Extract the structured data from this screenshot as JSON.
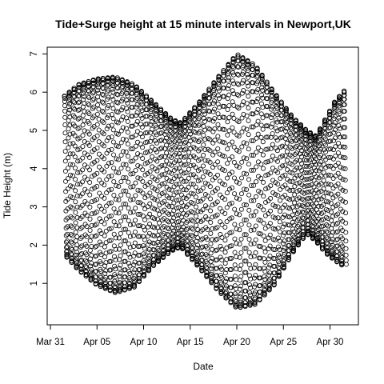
{
  "chart_data": {
    "type": "scatter",
    "title": "Tide+Surge height at 15 minute intervals in Newport,UK",
    "xlabel": "Date",
    "ylabel": "Tide Height (m)",
    "marker": "open-circle",
    "colors": {
      "marker": "#000000",
      "axis": "#000000",
      "background": "#ffffff"
    },
    "x_range_days": [
      "2014-03-31",
      "2014-05-03"
    ],
    "x_data_extent": [
      "2014-04-01T12:00",
      "2014-05-01T18:00"
    ],
    "ylim": [
      0,
      7.3
    ],
    "grid": false,
    "legend": "none",
    "x_ticks": [
      {
        "date": "2014-03-31",
        "label": "Mar 31"
      },
      {
        "date": "2014-04-05",
        "label": "Apr 05"
      },
      {
        "date": "2014-04-10",
        "label": "Apr 10"
      },
      {
        "date": "2014-04-15",
        "label": "Apr 15"
      },
      {
        "date": "2014-04-20",
        "label": "Apr 20"
      },
      {
        "date": "2014-04-25",
        "label": "Apr 25"
      },
      {
        "date": "2014-04-30",
        "label": "Apr 30"
      }
    ],
    "y_ticks": [
      1,
      2,
      3,
      4,
      5,
      6,
      7
    ],
    "tidal_range_envelope": {
      "dates": [
        "2014-04-01T12:00",
        "2014-04-03",
        "2014-04-05",
        "2014-04-07",
        "2014-04-09",
        "2014-04-11",
        "2014-04-13",
        "2014-04-14",
        "2014-04-16",
        "2014-04-18",
        "2014-04-20",
        "2014-04-22",
        "2014-04-24",
        "2014-04-26",
        "2014-04-27T12:00",
        "2014-04-28T12:00",
        "2014-04-29T12:00",
        "2014-04-30T12:00",
        "2014-05-01T18:00"
      ],
      "high_water": [
        5.9,
        6.2,
        6.35,
        6.4,
        6.2,
        5.75,
        5.3,
        5.2,
        5.75,
        6.4,
        7.0,
        6.7,
        6.0,
        5.35,
        5.0,
        4.85,
        5.3,
        5.75,
        6.1
      ],
      "low_water": [
        1.75,
        1.35,
        0.95,
        0.75,
        0.9,
        1.45,
        1.85,
        1.95,
        1.4,
        0.8,
        0.35,
        0.45,
        0.95,
        1.8,
        2.3,
        2.1,
        1.8,
        1.6,
        1.4
      ]
    },
    "sampling_interval_minutes": 15
  }
}
